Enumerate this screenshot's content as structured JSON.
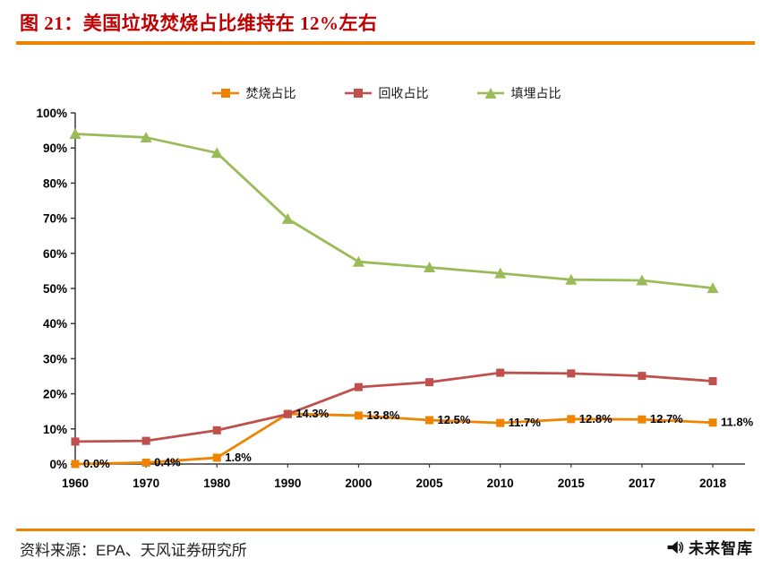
{
  "header": {
    "title": "图 21：美国垃圾焚烧占比维持在 12%左右"
  },
  "colors": {
    "accent_orange": "#F08300",
    "title_red": "#C00000",
    "axis": "#3a3a3a"
  },
  "chart_data": {
    "type": "line",
    "x": [
      "1960",
      "1970",
      "1980",
      "1990",
      "2000",
      "2005",
      "2010",
      "2015",
      "2017",
      "2018"
    ],
    "ylim": [
      0,
      100
    ],
    "ytick_step": 10,
    "ytick_suffix": "%",
    "grid": false,
    "legend_position": "top",
    "series": [
      {
        "name": "焚烧占比",
        "color": "#EE8400",
        "marker": "square",
        "values": [
          0.0,
          0.4,
          1.8,
          14.3,
          13.8,
          12.5,
          11.7,
          12.8,
          12.7,
          11.8
        ],
        "labels": [
          "0.0%",
          "0.4%",
          "1.8%",
          "14.3%",
          "13.8%",
          "12.5%",
          "11.7%",
          "12.8%",
          "12.7%",
          "11.8%"
        ]
      },
      {
        "name": "回收占比",
        "color": "#C0504D",
        "marker": "square",
        "values": [
          6.4,
          6.6,
          9.6,
          14.2,
          21.9,
          23.3,
          26.0,
          25.8,
          25.1,
          23.6
        ],
        "labels": null
      },
      {
        "name": "填埋占比",
        "color": "#9BBB59",
        "marker": "triangle",
        "values": [
          94.0,
          93.0,
          88.6,
          69.8,
          57.6,
          56.0,
          54.3,
          52.5,
          52.3,
          50.1
        ],
        "labels": null
      }
    ]
  },
  "footer": {
    "source": "资料来源：EPA、天风证券研究所",
    "brand": "未来智库"
  }
}
